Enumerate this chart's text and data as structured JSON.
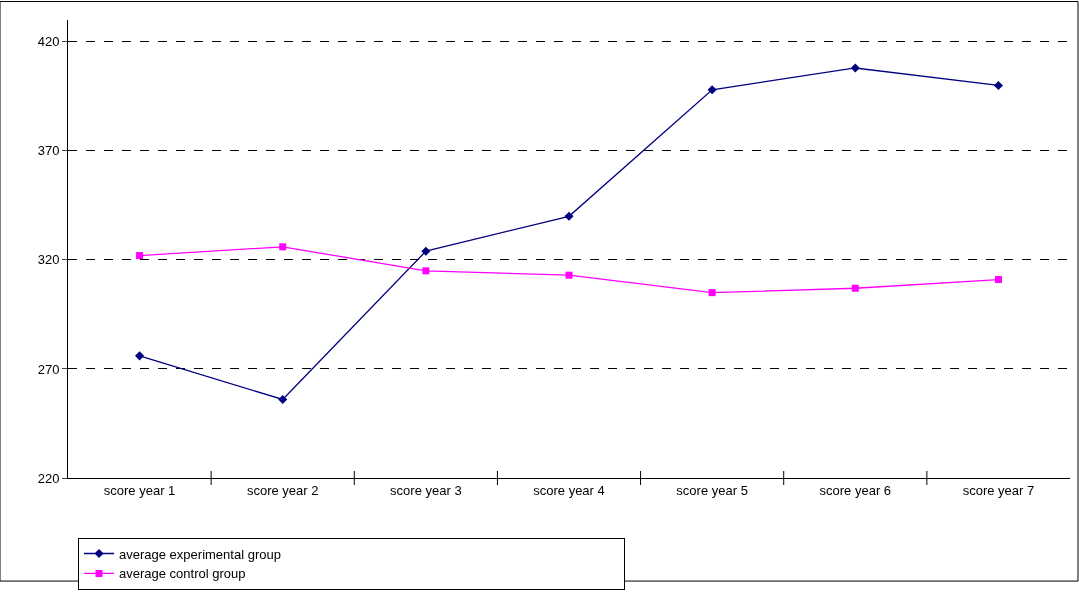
{
  "chart_data": {
    "type": "line",
    "categories": [
      "score year 1",
      "score year 2",
      "score year 3",
      "score year 4",
      "score year 5",
      "score year 6",
      "score year 7"
    ],
    "series": [
      {
        "name": "average experimental group",
        "color": "#000080",
        "marker": "diamond",
        "values": [
          276,
          256,
          324,
          340,
          398,
          408,
          400
        ]
      },
      {
        "name": "average control group",
        "color": "#ff00ff",
        "marker": "square",
        "values": [
          322,
          326,
          315,
          313,
          305,
          307,
          311
        ]
      }
    ],
    "ylim": [
      220,
      430
    ],
    "yticks": [
      220,
      270,
      320,
      370,
      420
    ],
    "grid": "y",
    "legend": "bottom",
    "line_style": "solid"
  }
}
